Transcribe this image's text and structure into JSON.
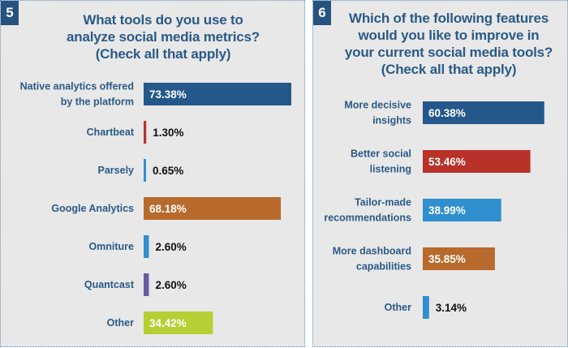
{
  "chart_data": [
    {
      "type": "bar",
      "orientation": "horizontal",
      "number": "5",
      "title_lines": [
        "What tools do you use to",
        "analyze social media metrics?",
        "(Check all that apply)"
      ],
      "categories": [
        [
          "Native analytics offered",
          "by the platform"
        ],
        [
          "Chartbeat"
        ],
        [
          "Parsely"
        ],
        [
          "Google Analytics"
        ],
        [
          "Omniture"
        ],
        [
          "Quantcast"
        ],
        [
          "Other"
        ]
      ],
      "values": [
        73.38,
        1.3,
        0.65,
        68.18,
        2.6,
        2.6,
        34.42
      ],
      "value_labels": [
        "73.38%",
        "1.30%",
        "0.65%",
        "68.18%",
        "2.60%",
        "2.60%",
        "34.42%"
      ],
      "colors": [
        "#25588a",
        "#b83229",
        "#2f8fcf",
        "#b86a2c",
        "#2f8fcf",
        "#6a5aa0",
        "#b5cf35"
      ],
      "xlim": [
        0,
        100
      ],
      "grid": false,
      "legend": "none"
    },
    {
      "type": "bar",
      "orientation": "horizontal",
      "number": "6",
      "title_lines": [
        "Which of the following features",
        "would you like to improve in",
        "your current social media tools?",
        "(Check all that apply)"
      ],
      "categories": [
        [
          "More decisive",
          "insights"
        ],
        [
          "Better social",
          "listening"
        ],
        [
          "Tailor-made",
          "recommendations"
        ],
        [
          "More dashboard",
          "capabilities"
        ],
        [
          "Other"
        ]
      ],
      "values": [
        60.38,
        53.46,
        38.99,
        35.85,
        3.14
      ],
      "value_labels": [
        "60.38%",
        "53.46%",
        "38.99%",
        "35.85%",
        "3.14%"
      ],
      "colors": [
        "#25588a",
        "#b83229",
        "#2f8fcf",
        "#b86a2c",
        "#2f8fcf"
      ],
      "xlim": [
        0,
        100
      ],
      "grid": false,
      "legend": "none"
    }
  ],
  "label_color": "#2a5a87",
  "value_on_bar_color": "#ffffff",
  "value_outside_color": "#111111"
}
